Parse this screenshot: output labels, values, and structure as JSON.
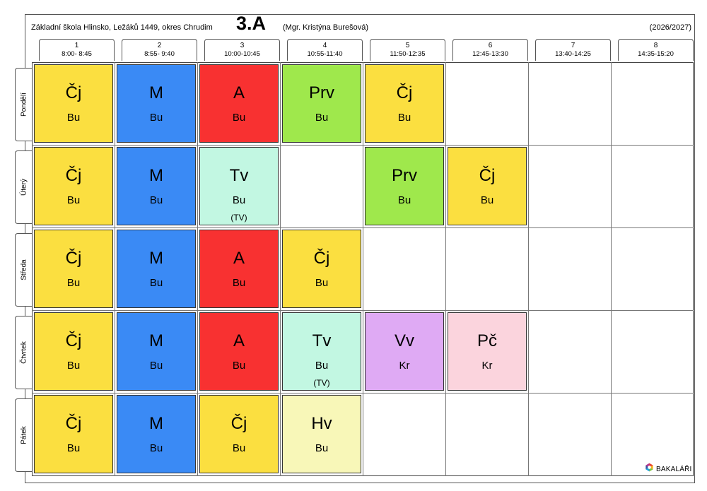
{
  "header": {
    "school": "Základní škola Hlinsko, Ležáků 1449, okres Chrudim",
    "class": "3.A",
    "teacher": "(Mgr. Kristýna Burešová)",
    "year": "(2026/2027)"
  },
  "periods": [
    {
      "num": "1",
      "time": "8:00- 8:45"
    },
    {
      "num": "2",
      "time": "8:55- 9:40"
    },
    {
      "num": "3",
      "time": "10:00-10:45"
    },
    {
      "num": "4",
      "time": "10:55-11:40"
    },
    {
      "num": "5",
      "time": "11:50-12:35"
    },
    {
      "num": "6",
      "time": "12:45-13:30"
    },
    {
      "num": "7",
      "time": "13:40-14:25"
    },
    {
      "num": "8",
      "time": "14:35-15:20"
    }
  ],
  "days": [
    "Pondělí",
    "Úterý",
    "Středa",
    "Čtvrtek",
    "Pátek"
  ],
  "colors": {
    "Čj": "#fbdf40",
    "M": "#3a8af5",
    "A": "#f83131",
    "Prv": "#9fe84c",
    "Tv": "#c2f7e2",
    "Vv": "#dfaaf4",
    "Pč": "#fbd4dd",
    "Hv": "#f8f7b8"
  },
  "lessons": [
    [
      {
        "subject": "Čj",
        "teacher": "Bu"
      },
      {
        "subject": "M",
        "teacher": "Bu"
      },
      {
        "subject": "A",
        "teacher": "Bu"
      },
      {
        "subject": "Prv",
        "teacher": "Bu"
      },
      {
        "subject": "Čj",
        "teacher": "Bu"
      },
      null,
      null,
      null
    ],
    [
      {
        "subject": "Čj",
        "teacher": "Bu"
      },
      {
        "subject": "M",
        "teacher": "Bu"
      },
      {
        "subject": "Tv",
        "teacher": "Bu",
        "room": "(TV)"
      },
      null,
      {
        "subject": "Prv",
        "teacher": "Bu"
      },
      {
        "subject": "Čj",
        "teacher": "Bu"
      },
      null,
      null
    ],
    [
      {
        "subject": "Čj",
        "teacher": "Bu"
      },
      {
        "subject": "M",
        "teacher": "Bu"
      },
      {
        "subject": "A",
        "teacher": "Bu"
      },
      {
        "subject": "Čj",
        "teacher": "Bu"
      },
      null,
      null,
      null,
      null
    ],
    [
      {
        "subject": "Čj",
        "teacher": "Bu"
      },
      {
        "subject": "M",
        "teacher": "Bu"
      },
      {
        "subject": "A",
        "teacher": "Bu"
      },
      {
        "subject": "Tv",
        "teacher": "Bu",
        "room": "(TV)"
      },
      {
        "subject": "Vv",
        "teacher": "Kr"
      },
      {
        "subject": "Pč",
        "teacher": "Kr"
      },
      null,
      null
    ],
    [
      {
        "subject": "Čj",
        "teacher": "Bu"
      },
      {
        "subject": "M",
        "teacher": "Bu"
      },
      {
        "subject": "Čj",
        "teacher": "Bu"
      },
      {
        "subject": "Hv",
        "teacher": "Bu"
      },
      null,
      null,
      null,
      null
    ]
  ],
  "logo": {
    "icon": "bakalari-hexagon-icon",
    "text": "BAKALÁŘI"
  }
}
